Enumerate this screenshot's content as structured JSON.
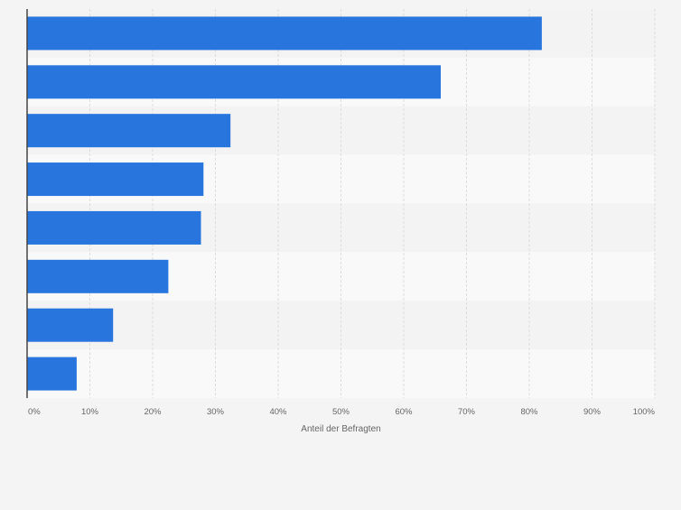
{
  "chart_data": {
    "type": "bar",
    "orientation": "horizontal",
    "categories": [
      "",
      "",
      "",
      "",
      "",
      "",
      "",
      ""
    ],
    "values": [
      82.0,
      65.9,
      32.4,
      28.1,
      27.7,
      22.5,
      13.7,
      7.9
    ],
    "xlabel": "Anteil der Befragten",
    "ylabel": "",
    "xlim": [
      0,
      100
    ],
    "x_tick_labels": [
      "0%",
      "10%",
      "20%",
      "30%",
      "40%",
      "50%",
      "60%",
      "70%",
      "80%",
      "90%",
      "100%"
    ],
    "grid": true,
    "legend": "none",
    "colors": {
      "bar": "#2876dd",
      "background": "#f4f4f4",
      "band_light": "#f9f9f9",
      "band_dark": "#f3f3f3",
      "grid": "#dddddd",
      "axis": "#444444",
      "tick_text": "#666666"
    }
  }
}
